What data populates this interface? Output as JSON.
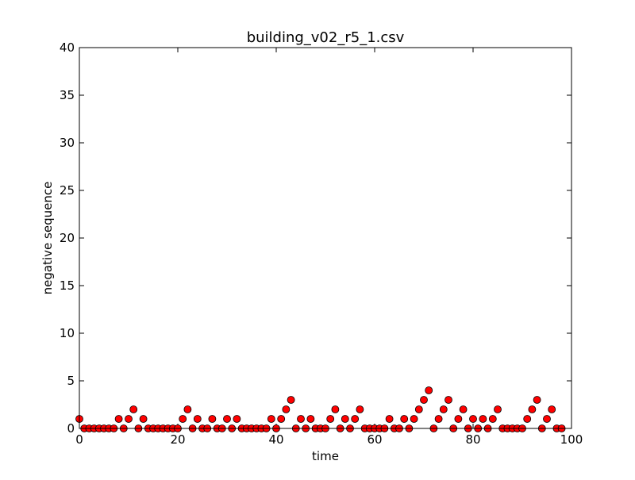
{
  "chart_data": {
    "type": "scatter",
    "title": "building_v02_r5_1.csv",
    "xlabel": "time",
    "ylabel": "negative sequence",
    "xlim": [
      0,
      100
    ],
    "ylim": [
      0,
      40
    ],
    "xticks": [
      0,
      20,
      40,
      60,
      80,
      100
    ],
    "yticks": [
      0,
      5,
      10,
      15,
      20,
      25,
      30,
      35,
      40
    ],
    "grid": false,
    "marker_color": "#ff0000",
    "marker_edge_color": "#000000",
    "x": [
      0,
      1,
      2,
      3,
      4,
      5,
      6,
      7,
      8,
      9,
      10,
      11,
      12,
      13,
      14,
      15,
      16,
      17,
      18,
      19,
      20,
      21,
      22,
      23,
      24,
      25,
      26,
      27,
      28,
      29,
      30,
      31,
      32,
      33,
      34,
      35,
      36,
      37,
      38,
      39,
      40,
      41,
      42,
      43,
      44,
      45,
      46,
      47,
      48,
      49,
      50,
      51,
      52,
      53,
      54,
      55,
      56,
      57,
      58,
      59,
      60,
      61,
      62,
      63,
      64,
      65,
      66,
      67,
      68,
      69,
      70,
      71,
      72,
      73,
      74,
      75,
      76,
      77,
      78,
      79,
      80,
      81,
      82,
      83,
      84,
      85,
      86,
      87,
      88,
      89,
      90,
      91,
      92,
      93,
      94,
      95,
      96,
      97,
      98
    ],
    "y": [
      1,
      0,
      0,
      0,
      0,
      0,
      0,
      0,
      1,
      0,
      1,
      2,
      0,
      1,
      0,
      0,
      0,
      0,
      0,
      0,
      0,
      1,
      2,
      0,
      1,
      0,
      0,
      1,
      0,
      0,
      1,
      0,
      1,
      0,
      0,
      0,
      0,
      0,
      0,
      1,
      0,
      1,
      2,
      3,
      0,
      1,
      0,
      1,
      0,
      0,
      0,
      1,
      2,
      0,
      1,
      0,
      1,
      2,
      0,
      0,
      0,
      0,
      0,
      1,
      0,
      0,
      1,
      0,
      1,
      2,
      3,
      4,
      0,
      1,
      2,
      3,
      0,
      1,
      2,
      0,
      1,
      0,
      1,
      0,
      1,
      2,
      0,
      0,
      0,
      0,
      0,
      1,
      2,
      3,
      0,
      1,
      2,
      0,
      0
    ]
  }
}
